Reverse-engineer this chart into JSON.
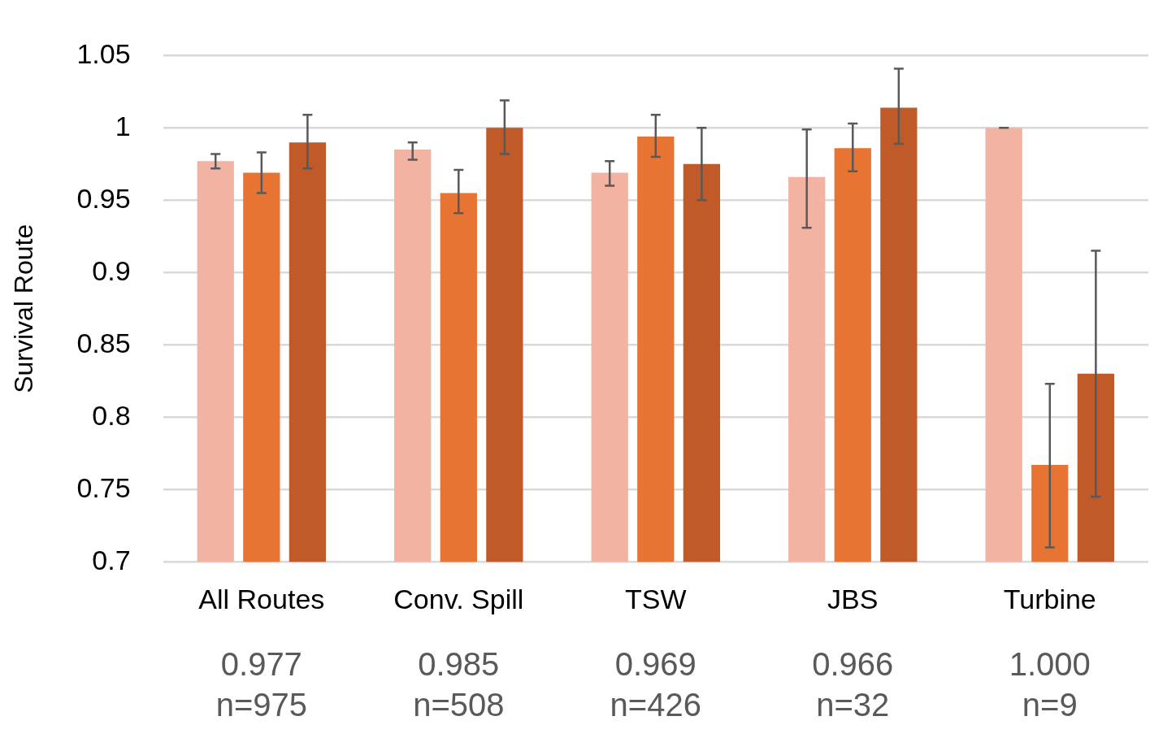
{
  "chart_data": {
    "type": "bar",
    "ylabel": "Survival Route",
    "categories": [
      "All Routes",
      "Conv. Spill",
      "TSW",
      "JBS",
      "Turbine"
    ],
    "series": [
      {
        "color": "#f2b3a3",
        "values": [
          0.977,
          0.985,
          0.969,
          0.966,
          1.0
        ],
        "errors": [
          [
            0.972,
            0.982
          ],
          [
            0.978,
            0.99
          ],
          [
            0.96,
            0.977
          ],
          [
            0.931,
            0.999
          ],
          [
            1.0,
            1.0
          ]
        ],
        "value_labels": [
          "0.977",
          "0.985",
          "0.969",
          "0.966",
          "1.000"
        ]
      },
      {
        "color": "#e87434",
        "values": [
          0.969,
          0.955,
          0.994,
          0.986,
          0.767
        ],
        "errors": [
          [
            0.955,
            0.983
          ],
          [
            0.941,
            0.971
          ],
          [
            0.98,
            1.009
          ],
          [
            0.97,
            1.003
          ],
          [
            0.71,
            0.823
          ]
        ]
      },
      {
        "color": "#c05a28",
        "values": [
          0.99,
          1.0,
          0.975,
          1.014,
          0.83
        ],
        "errors": [
          [
            0.972,
            1.009
          ],
          [
            0.982,
            1.019
          ],
          [
            0.95,
            1.0
          ],
          [
            0.989,
            1.041
          ],
          [
            0.745,
            0.915
          ]
        ]
      }
    ],
    "annotations": [
      "n=975",
      "n=508",
      "n=426",
      "n=32",
      "n=9"
    ],
    "ylim": [
      0.7,
      1.05
    ],
    "yticks": [
      0.7,
      0.75,
      0.8,
      0.85,
      0.9,
      0.95,
      1,
      1.05
    ],
    "grid": "y",
    "legend": false
  }
}
